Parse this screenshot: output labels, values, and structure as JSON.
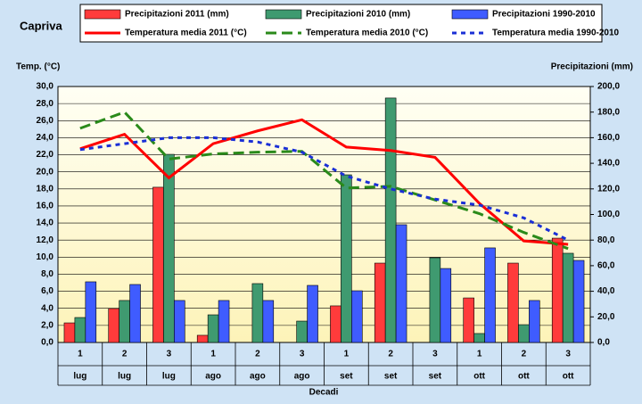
{
  "chart_data": {
    "type": "bar-line",
    "title": "Capriva",
    "y_label": "Temp. (°C)",
    "y2_label": "Precipitazioni (mm)",
    "x_label": "Decadi",
    "categories": [
      "1",
      "2",
      "3",
      "1",
      "2",
      "3",
      "1",
      "2",
      "3",
      "1",
      "2",
      "3"
    ],
    "months": [
      "lug",
      "lug",
      "lug",
      "ago",
      "ago",
      "ago",
      "set",
      "set",
      "set",
      "ott",
      "ott",
      "ott"
    ],
    "ylim": [
      0,
      30
    ],
    "yticks": [
      {
        "value": 0,
        "label": "0,0"
      },
      {
        "value": 2,
        "label": "2,0"
      },
      {
        "value": 4,
        "label": "4,0"
      },
      {
        "value": 6,
        "label": "6,0"
      },
      {
        "value": 8,
        "label": "8,0"
      },
      {
        "value": 10,
        "label": "10,0"
      },
      {
        "value": 12,
        "label": "12,0"
      },
      {
        "value": 14,
        "label": "14,0"
      },
      {
        "value": 16,
        "label": "16,0"
      },
      {
        "value": 18,
        "label": "18,0"
      },
      {
        "value": 20,
        "label": "20,0"
      },
      {
        "value": 22,
        "label": "22,0"
      },
      {
        "value": 24,
        "label": "24,0"
      },
      {
        "value": 26,
        "label": "26,0"
      },
      {
        "value": 28,
        "label": "28,0"
      },
      {
        "value": 30,
        "label": "30,0"
      }
    ],
    "y2lim": [
      0,
      200
    ],
    "y2ticks": [
      {
        "value": 0,
        "label": "0,0"
      },
      {
        "value": 20,
        "label": "20,0"
      },
      {
        "value": 40,
        "label": "40,0"
      },
      {
        "value": 60,
        "label": "60,0"
      },
      {
        "value": 80,
        "label": "80,0"
      },
      {
        "value": 100,
        "label": "100,0"
      },
      {
        "value": 120,
        "label": "120,0"
      },
      {
        "value": 140,
        "label": "140,0"
      },
      {
        "value": 160,
        "label": "160,0"
      },
      {
        "value": 180,
        "label": "180,0"
      },
      {
        "value": 200,
        "label": "200,0"
      }
    ],
    "grid": true,
    "series": [
      {
        "name": "Precipitazioni 2011 (mm)",
        "kind": "bar",
        "axis": "y2",
        "color": "#ff3b3b",
        "values": [
          15.3,
          26.5,
          121.3,
          5.6,
          null,
          null,
          28.6,
          62,
          null,
          34.8,
          62,
          81.5
        ]
      },
      {
        "name": "Precipitazioni 2010 (mm)",
        "kind": "bar",
        "axis": "y2",
        "color": "#3f9a70",
        "values": [
          19.5,
          32.8,
          147,
          21.6,
          46,
          16.7,
          131,
          191,
          66.2,
          7,
          13.9,
          69.7
        ]
      },
      {
        "name": "Precipitazioni 1990-2010",
        "kind": "bar",
        "axis": "y2",
        "color": "#3f5cff",
        "values": [
          47.4,
          45.3,
          32.8,
          32.8,
          32.8,
          44.6,
          40.4,
          92,
          57.8,
          73.9,
          32.8,
          64.1
        ]
      },
      {
        "name": "Temperatura media 2011 (°C)",
        "kind": "line",
        "color": "#ff0000",
        "dash": "solid",
        "values": [
          22.7,
          24.4,
          19.3,
          23.3,
          24.8,
          26.1,
          22.9,
          22.5,
          21.7,
          16.3,
          11.9,
          11.5
        ]
      },
      {
        "name": "Temperatura media 2010 (°C)",
        "kind": "line",
        "color": "#2a8a1a",
        "dash": "dashed",
        "values": [
          25.1,
          27.0,
          21.5,
          22.1,
          22.3,
          22.4,
          18.1,
          18.3,
          16.7,
          15.1,
          12.9,
          11.0
        ]
      },
      {
        "name": "Temperatura media 1990-2010",
        "kind": "line",
        "color": "#1a2fd6",
        "dash": "dotted",
        "values": [
          22.6,
          23.3,
          24.0,
          24.0,
          23.5,
          22.3,
          19.5,
          18.0,
          16.8,
          16.1,
          14.6,
          12.0
        ]
      }
    ]
  }
}
